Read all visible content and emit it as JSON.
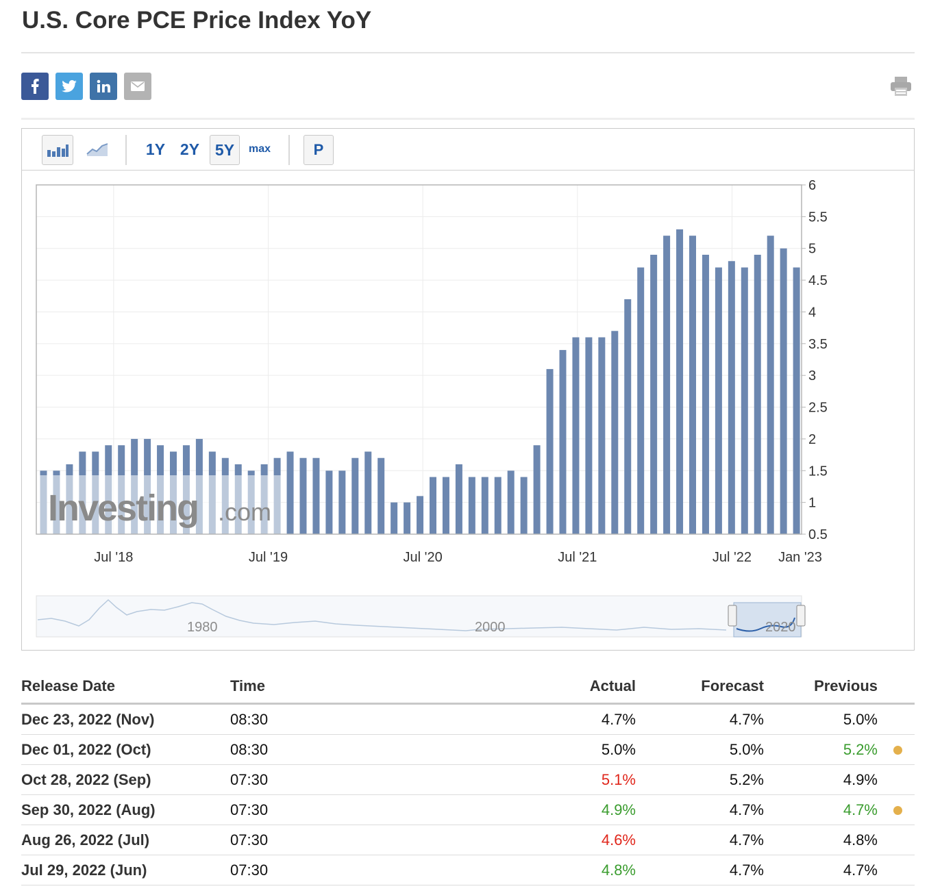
{
  "page": {
    "title": "U.S. Core PCE Price Index YoY"
  },
  "share": {
    "facebook": {
      "label": "f",
      "color": "#3b5998"
    },
    "twitter": {
      "label": "twitter",
      "color": "#4aa3df"
    },
    "linkedin": {
      "label": "in",
      "color": "#3f73a8"
    },
    "email": {
      "label": "email",
      "color": "#b3b3b3"
    }
  },
  "toolbar": {
    "bar_chart_icon": "bar-chart-icon",
    "line_chart_icon": "line-chart-icon",
    "ranges": [
      "1Y",
      "2Y",
      "5Y",
      "max"
    ],
    "selected_range": "5Y",
    "p_label": "P"
  },
  "watermark": {
    "brand": "Investing",
    "suffix": ".com"
  },
  "chart_data": {
    "type": "bar",
    "title": "U.S. Core PCE Price Index YoY",
    "ylabel": "",
    "xlabel": "",
    "ylim": [
      0.5,
      6
    ],
    "y_ticks": [
      "6",
      "5.5",
      "5",
      "4.5",
      "4",
      "3.5",
      "3",
      "2.5",
      "2",
      "1.5",
      "1",
      "0.5"
    ],
    "x_ticks": [
      "Jul '18",
      "Jul '19",
      "Jul '20",
      "Jul '21",
      "Jul '22",
      "Jan '23"
    ],
    "start_month": "Jan 2018",
    "end_month": "Nov 2022",
    "values": [
      1.5,
      1.5,
      1.6,
      1.8,
      1.8,
      1.9,
      1.9,
      2.0,
      2.0,
      1.9,
      1.8,
      1.9,
      2.0,
      1.8,
      1.7,
      1.6,
      1.5,
      1.6,
      1.7,
      1.8,
      1.7,
      1.7,
      1.5,
      1.5,
      1.7,
      1.8,
      1.7,
      1.0,
      1.0,
      1.1,
      1.4,
      1.4,
      1.6,
      1.4,
      1.4,
      1.4,
      1.5,
      1.4,
      1.9,
      3.1,
      3.4,
      3.6,
      3.6,
      3.6,
      3.7,
      4.2,
      4.7,
      4.9,
      5.2,
      5.3,
      5.2,
      4.9,
      4.7,
      4.8,
      4.7,
      4.9,
      5.2,
      5.0,
      4.7
    ],
    "navigator": {
      "labels": [
        "1980",
        "2000",
        "2020"
      ]
    }
  },
  "table": {
    "headers": {
      "release_date": "Release Date",
      "time": "Time",
      "actual": "Actual",
      "forecast": "Forecast",
      "previous": "Previous"
    },
    "rows": [
      {
        "date": "Dec 23, 2022 (Nov)",
        "time": "08:30",
        "actual": "4.7%",
        "forecast": "4.7%",
        "previous": "5.0%"
      },
      {
        "date": "Dec 01, 2022 (Oct)",
        "time": "08:30",
        "actual": "5.0%",
        "forecast": "5.0%",
        "previous": "5.2%"
      },
      {
        "date": "Oct 28, 2022 (Sep)",
        "time": "07:30",
        "actual": "5.1%",
        "forecast": "5.2%",
        "previous": "4.9%"
      },
      {
        "date": "Sep 30, 2022 (Aug)",
        "time": "07:30",
        "actual": "4.9%",
        "forecast": "4.7%",
        "previous": "4.7%"
      },
      {
        "date": "Aug 26, 2022 (Jul)",
        "time": "07:30",
        "actual": "4.6%",
        "forecast": "4.7%",
        "previous": "4.8%"
      },
      {
        "date": "Jul 29, 2022 (Jun)",
        "time": "07:30",
        "actual": "4.8%",
        "forecast": "4.7%",
        "previous": "4.7%"
      }
    ]
  }
}
